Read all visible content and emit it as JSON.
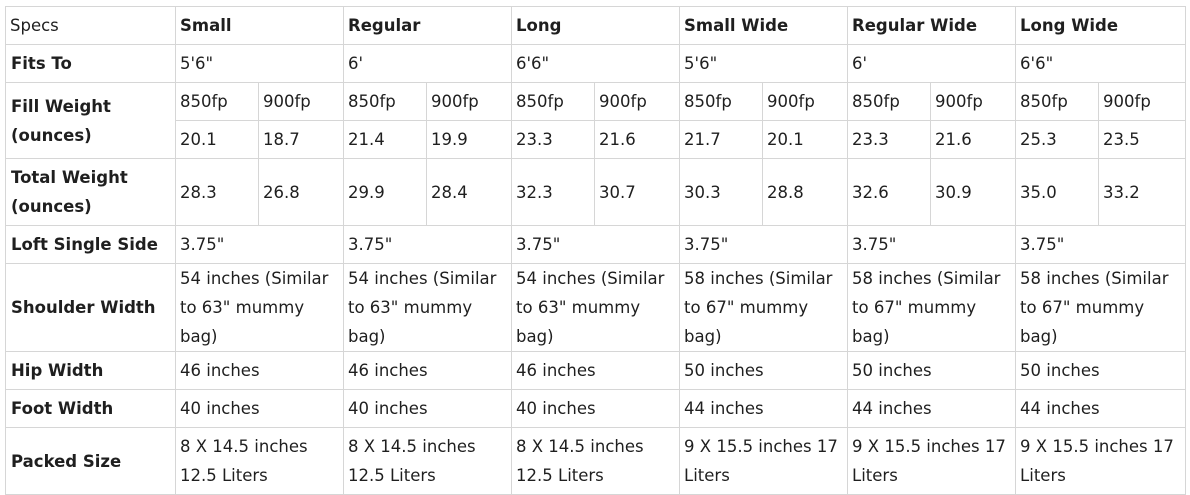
{
  "table": {
    "corner": "Specs",
    "models": [
      "Small",
      "Regular",
      "Long",
      "Small Wide",
      "Regular Wide",
      "Long Wide"
    ],
    "fits_to": {
      "label": "Fits To",
      "values": [
        "5'6\"",
        "6'",
        "6'6\"",
        "5'6\"",
        "6'",
        "6'6\""
      ]
    },
    "fill_weight": {
      "label": "Fill Weight (ounces)",
      "fp_labels": [
        "850fp",
        "900fp"
      ],
      "values": [
        [
          "20.1",
          "18.7"
        ],
        [
          "21.4",
          "19.9"
        ],
        [
          "23.3",
          "21.6"
        ],
        [
          "21.7",
          "20.1"
        ],
        [
          "23.3",
          "21.6"
        ],
        [
          "25.3",
          "23.5"
        ]
      ]
    },
    "total_weight": {
      "label": "Total Weight (ounces)",
      "values": [
        [
          "28.3",
          "26.8"
        ],
        [
          "29.9",
          "28.4"
        ],
        [
          "32.3",
          "30.7"
        ],
        [
          "30.3",
          "28.8"
        ],
        [
          "32.6",
          "30.9"
        ],
        [
          "35.0",
          "33.2"
        ]
      ]
    },
    "loft": {
      "label": "Loft Single Side",
      "values": [
        "3.75\"",
        "3.75\"",
        "3.75\"",
        "3.75\"",
        "3.75\"",
        "3.75\""
      ]
    },
    "shoulder": {
      "label": "Shoulder Width",
      "values": [
        "54 inches (Similar to 63\" mummy bag)",
        "54 inches (Similar to 63\" mummy bag)",
        "54 inches (Similar to 63\" mummy bag)",
        "58 inches (Similar to 67\" mummy bag)",
        "58 inches (Similar to 67\" mummy bag)",
        "58 inches (Similar to 67\" mummy bag)"
      ]
    },
    "hip": {
      "label": "Hip Width",
      "values": [
        "46 inches",
        "46 inches",
        "46 inches",
        "50 inches",
        "50 inches",
        "50 inches"
      ]
    },
    "foot": {
      "label": "Foot Width",
      "values": [
        "40 inches",
        "40 inches",
        "40 inches",
        "44 inches",
        "44 inches",
        "44 inches"
      ]
    },
    "packed": {
      "label": "Packed Size",
      "values": [
        "8 X 14.5 inches 12.5 Liters",
        "8 X 14.5 inches 12.5 Liters",
        "8 X 14.5 inches 12.5 Liters",
        "9 X 15.5 inches 17 Liters",
        "9 X 15.5 inches 17 Liters",
        "9 X 15.5 inches 17 Liters"
      ]
    }
  }
}
